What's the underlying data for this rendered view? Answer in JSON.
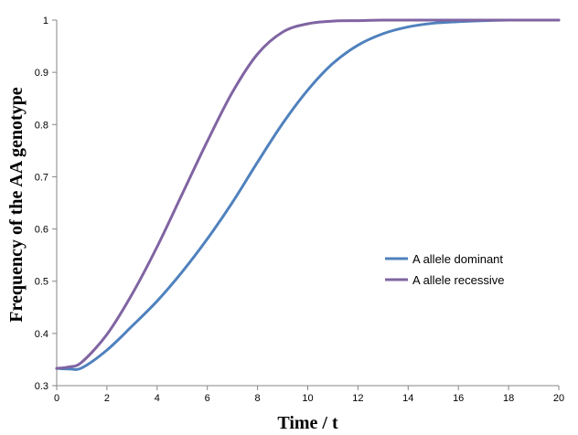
{
  "chart_data": {
    "type": "line",
    "title": "",
    "xlabel": "Time / t",
    "ylabel": "Frequency of the AA genotype",
    "xlim": [
      0,
      20
    ],
    "ylim": [
      0.3,
      1
    ],
    "x_ticks": [
      0,
      2,
      4,
      6,
      8,
      10,
      12,
      14,
      16,
      18,
      20
    ],
    "y_ticks": [
      0.3,
      0.4,
      0.5,
      0.6,
      0.7,
      0.8,
      0.9,
      1
    ],
    "x_tick_labels": [
      "0",
      "2",
      "4",
      "6",
      "8",
      "10",
      "12",
      "14",
      "16",
      "18",
      "20"
    ],
    "y_tick_labels": [
      "0.3",
      "0.4",
      "0.5",
      "0.6",
      "0.7",
      "0.8",
      "0.9",
      "1"
    ],
    "grid": false,
    "legend_position": "right",
    "series": [
      {
        "name": "A allele dominant",
        "color": "#4f81bd",
        "points": [
          [
            0,
            0.333
          ],
          [
            0.5,
            0.332
          ],
          [
            1,
            0.334
          ],
          [
            2,
            0.368
          ],
          [
            3,
            0.414
          ],
          [
            4,
            0.462
          ],
          [
            5,
            0.518
          ],
          [
            6,
            0.581
          ],
          [
            7,
            0.651
          ],
          [
            8,
            0.728
          ],
          [
            9,
            0.802
          ],
          [
            10,
            0.866
          ],
          [
            11,
            0.917
          ],
          [
            12,
            0.952
          ],
          [
            13,
            0.974
          ],
          [
            14,
            0.987
          ],
          [
            15,
            0.994
          ],
          [
            16,
            0.997
          ],
          [
            17,
            0.999
          ],
          [
            18,
            1.0
          ],
          [
            19,
            1.0
          ],
          [
            20,
            1.0
          ]
        ]
      },
      {
        "name": "A allele recessive",
        "color": "#8064a2",
        "points": [
          [
            0,
            0.333
          ],
          [
            0.5,
            0.336
          ],
          [
            1,
            0.345
          ],
          [
            2,
            0.398
          ],
          [
            3,
            0.475
          ],
          [
            4,
            0.566
          ],
          [
            5,
            0.667
          ],
          [
            6,
            0.768
          ],
          [
            7,
            0.862
          ],
          [
            8,
            0.935
          ],
          [
            9,
            0.977
          ],
          [
            10,
            0.993
          ],
          [
            11,
            0.998
          ],
          [
            12,
            0.999
          ],
          [
            13,
            1.0
          ],
          [
            14,
            1.0
          ],
          [
            15,
            1.0
          ],
          [
            16,
            1.0
          ],
          [
            17,
            1.0
          ],
          [
            18,
            1.0
          ],
          [
            19,
            1.0
          ],
          [
            20,
            1.0
          ]
        ]
      }
    ]
  }
}
